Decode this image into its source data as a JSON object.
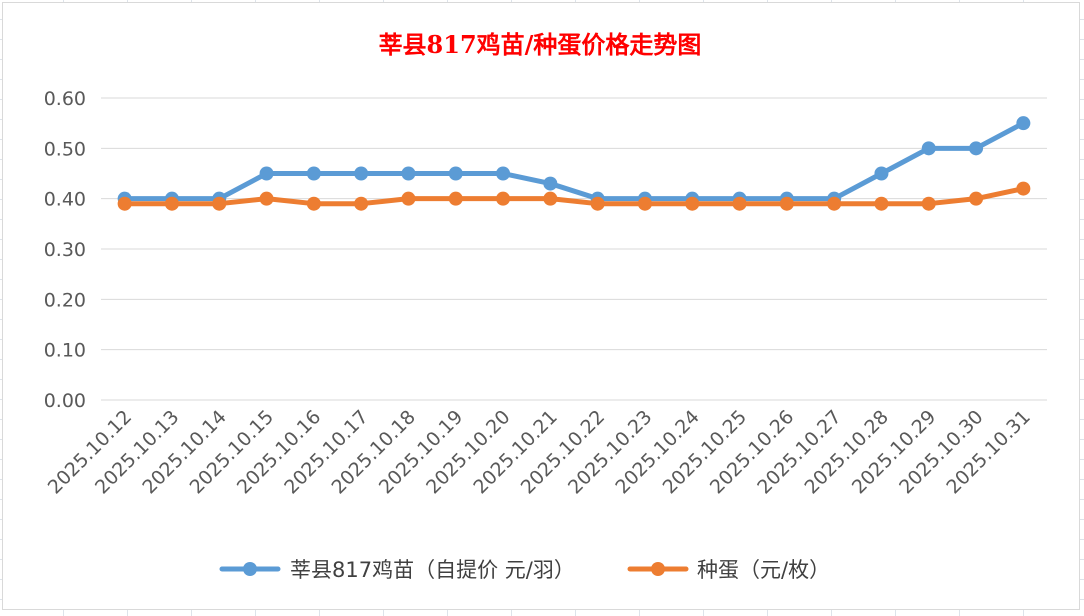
{
  "chart_data": {
    "type": "line",
    "title": "莘县817鸡苗/种蛋价格走势图",
    "categories": [
      "2025.10.12",
      "2025.10.13",
      "2025.10.14",
      "2025.10.15",
      "2025.10.16",
      "2025.10.17",
      "2025.10.18",
      "2025.10.19",
      "2025.10.20",
      "2025.10.21",
      "2025.10.22",
      "2025.10.23",
      "2025.10.24",
      "2025.10.25",
      "2025.10.26",
      "2025.10.27",
      "2025.10.28",
      "2025.10.29",
      "2025.10.30",
      "2025.10.31"
    ],
    "series": [
      {
        "name": "莘县817鸡苗（自提价 元/羽）",
        "color": "#5b9bd5",
        "values": [
          0.4,
          0.4,
          0.4,
          0.45,
          0.45,
          0.45,
          0.45,
          0.45,
          0.45,
          0.43,
          0.4,
          0.4,
          0.4,
          0.4,
          0.4,
          0.4,
          0.45,
          0.5,
          0.5,
          0.55
        ]
      },
      {
        "name": "种蛋（元/枚）",
        "color": "#ed7d31",
        "values": [
          0.39,
          0.39,
          0.39,
          0.4,
          0.39,
          0.39,
          0.4,
          0.4,
          0.4,
          0.4,
          0.39,
          0.39,
          0.39,
          0.39,
          0.39,
          0.39,
          0.39,
          0.39,
          0.4,
          0.42
        ]
      }
    ],
    "yticks": [
      "0.00",
      "0.10",
      "0.20",
      "0.30",
      "0.40",
      "0.50",
      "0.60"
    ],
    "ylim": [
      0,
      0.6
    ],
    "grid": true,
    "legend": "bottom"
  }
}
